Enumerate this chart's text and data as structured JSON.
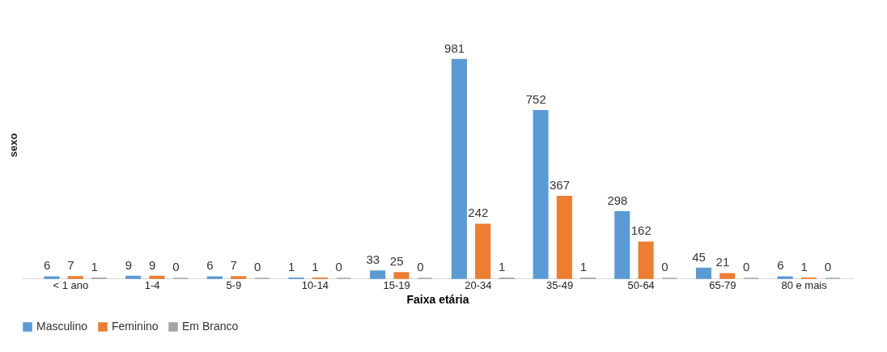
{
  "chart_data": {
    "type": "bar",
    "xlabel": "Faixa etária",
    "ylabel": "sexo",
    "categories": [
      "< 1 ano",
      "1-4",
      "5-9",
      "10-14",
      "15-19",
      "20-34",
      "35-49",
      "50-64",
      "65-79",
      "80 e mais"
    ],
    "series": [
      {
        "name": "Masculino",
        "color": "#5b9bd5",
        "values": [
          6,
          9,
          6,
          1,
          33,
          981,
          752,
          298,
          45,
          6
        ]
      },
      {
        "name": "Feminino",
        "color": "#ed7d31",
        "values": [
          7,
          9,
          7,
          1,
          25,
          242,
          367,
          162,
          21,
          1
        ]
      },
      {
        "name": "Em Branco",
        "color": "#a5a5a5",
        "values": [
          1,
          0,
          0,
          0,
          0,
          1,
          1,
          0,
          0,
          0
        ]
      }
    ],
    "data_labels": true,
    "legend": "bottom"
  }
}
